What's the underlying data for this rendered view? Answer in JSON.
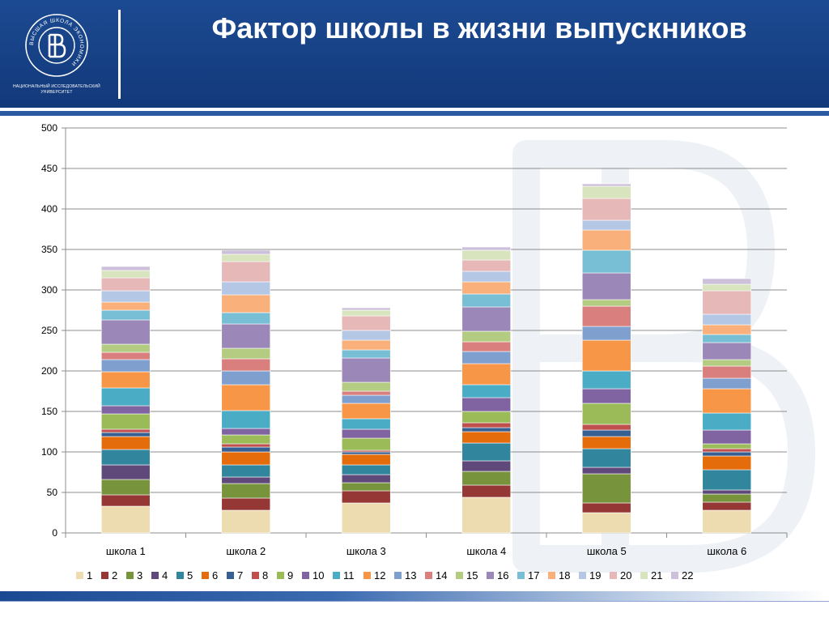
{
  "header": {
    "title": "Фактор школы в жизни выпускников",
    "logo_ring_text": "ВЫСШАЯ ШКОЛА ЭКОНОМИКИ",
    "logo_caption": "НАЦИОНАЛЬНЫЙ ИССЛЕДОВАТЕЛЬСКИЙ УНИВЕРСИТЕТ",
    "brand_color": "#1c4a92"
  },
  "chart_data": {
    "type": "bar",
    "stacked": true,
    "title": "",
    "xlabel": "",
    "ylabel": "",
    "ylim": [
      0,
      500
    ],
    "yticks": [
      0,
      50,
      100,
      150,
      200,
      250,
      300,
      350,
      400,
      450,
      500
    ],
    "grid": true,
    "legend_position": "bottom",
    "categories": [
      "школа 1",
      "школа 2",
      "школа 3",
      "школа 4",
      "школа 5",
      "школа 6"
    ],
    "series": [
      {
        "name": "1",
        "color": "#ecdcb0",
        "values": [
          33,
          28,
          37,
          44,
          25,
          28
        ]
      },
      {
        "name": "2",
        "color": "#953735",
        "values": [
          14,
          15,
          15,
          15,
          12,
          10
        ]
      },
      {
        "name": "3",
        "color": "#77933c",
        "values": [
          19,
          18,
          10,
          17,
          36,
          10
        ]
      },
      {
        "name": "4",
        "color": "#5f497a",
        "values": [
          18,
          8,
          10,
          13,
          8,
          5
        ]
      },
      {
        "name": "5",
        "color": "#31859c",
        "values": [
          19,
          15,
          12,
          22,
          23,
          25
        ]
      },
      {
        "name": "6",
        "color": "#e46c0a",
        "values": [
          16,
          16,
          13,
          14,
          15,
          17
        ]
      },
      {
        "name": "7",
        "color": "#376092",
        "values": [
          5,
          6,
          3,
          5,
          8,
          5
        ]
      },
      {
        "name": "8",
        "color": "#c0504d",
        "values": [
          4,
          4,
          2,
          6,
          7,
          4
        ]
      },
      {
        "name": "9",
        "color": "#9bbb59",
        "values": [
          19,
          11,
          15,
          14,
          26,
          6
        ]
      },
      {
        "name": "10",
        "color": "#8064a2",
        "values": [
          10,
          8,
          11,
          17,
          18,
          17
        ]
      },
      {
        "name": "11",
        "color": "#4bacc6",
        "values": [
          22,
          22,
          13,
          16,
          22,
          21
        ]
      },
      {
        "name": "12",
        "color": "#f79646",
        "values": [
          20,
          32,
          19,
          26,
          38,
          30
        ]
      },
      {
        "name": "13",
        "color": "#7f9fcf",
        "values": [
          15,
          17,
          10,
          15,
          17,
          13
        ]
      },
      {
        "name": "14",
        "color": "#d9807e",
        "values": [
          9,
          15,
          5,
          12,
          25,
          15
        ]
      },
      {
        "name": "15",
        "color": "#b3cc82",
        "values": [
          10,
          13,
          11,
          13,
          8,
          8
        ]
      },
      {
        "name": "16",
        "color": "#9b88b8",
        "values": [
          30,
          30,
          30,
          30,
          33,
          21
        ]
      },
      {
        "name": "17",
        "color": "#78bfd5",
        "values": [
          12,
          14,
          10,
          16,
          28,
          10
        ]
      },
      {
        "name": "18",
        "color": "#fab07a",
        "values": [
          10,
          22,
          12,
          15,
          25,
          12
        ]
      },
      {
        "name": "19",
        "color": "#b4c7e4",
        "values": [
          14,
          16,
          12,
          13,
          12,
          13
        ]
      },
      {
        "name": "20",
        "color": "#e6b9b8",
        "values": [
          16,
          25,
          18,
          14,
          27,
          29
        ]
      },
      {
        "name": "21",
        "color": "#d7e4bd",
        "values": [
          9,
          9,
          7,
          12,
          15,
          8
        ]
      },
      {
        "name": "22",
        "color": "#ccc0da",
        "values": [
          5,
          5,
          3,
          4,
          3,
          7
        ]
      }
    ]
  }
}
